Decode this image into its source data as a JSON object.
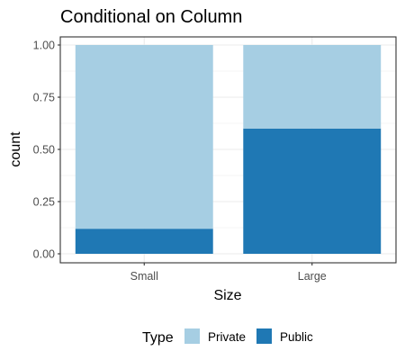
{
  "chart_data": {
    "type": "bar",
    "stacked": true,
    "title": "Conditional on Column",
    "xlabel": "Size",
    "ylabel": "count",
    "categories": [
      "Small",
      "Large"
    ],
    "series": [
      {
        "name": "Private",
        "values": [
          0.88,
          0.4
        ],
        "color": "#a6cee3"
      },
      {
        "name": "Public",
        "values": [
          0.12,
          0.6
        ],
        "color": "#1f78b4"
      }
    ],
    "stack_order_bottom_to_top": [
      "Public",
      "Private"
    ],
    "ylim": [
      0,
      1
    ],
    "yticks": [
      "0.00",
      "0.25",
      "0.50",
      "0.75",
      "1.00"
    ],
    "ytick_values": [
      0,
      0.25,
      0.5,
      0.75,
      1.0
    ],
    "grid": true,
    "legend": {
      "title": "Type",
      "position": "bottom"
    }
  }
}
